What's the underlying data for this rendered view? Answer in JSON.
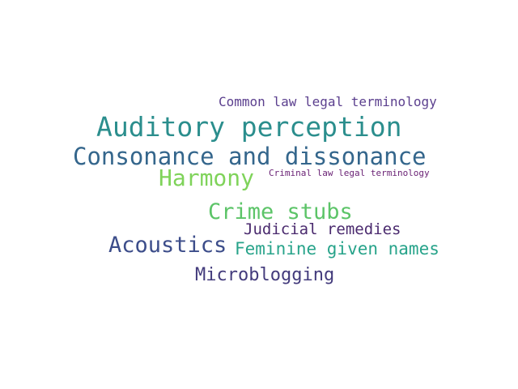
{
  "words": [
    {
      "text": "Common law legal terminology",
      "color": "#5b3f8e"
    },
    {
      "text": "Auditory perception",
      "color": "#2b8e8d"
    },
    {
      "text": "Consonance and dissonance",
      "color": "#34668c"
    },
    {
      "text": "Harmony",
      "color": "#7fd35a"
    },
    {
      "text": "Criminal law legal terminology",
      "color": "#6a2275"
    },
    {
      "text": "Crime stubs",
      "color": "#5cc468"
    },
    {
      "text": "Judicial remedies",
      "color": "#4a2a6e"
    },
    {
      "text": "Acoustics",
      "color": "#3c4d8a"
    },
    {
      "text": "Feminine given names",
      "color": "#27a38a"
    },
    {
      "text": "Microblogging",
      "color": "#433b7c"
    }
  ]
}
